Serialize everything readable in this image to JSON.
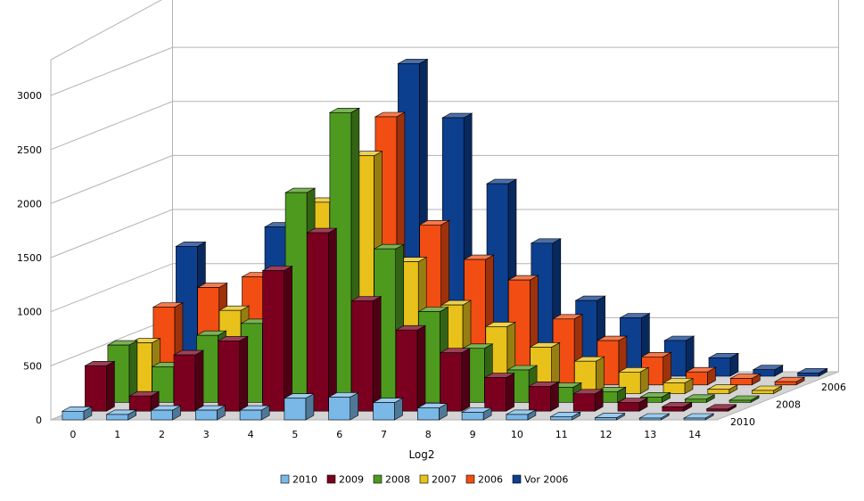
{
  "chart_data": {
    "type": "bar",
    "variant": "3d-deep",
    "xlabel": "Log2",
    "ylabel": "",
    "title": "",
    "categories": [
      "0",
      "1",
      "2",
      "3",
      "4",
      "5",
      "6",
      "7",
      "8",
      "9",
      "10",
      "11",
      "12",
      "13",
      "14"
    ],
    "yticks": [
      "0",
      "500",
      "1000",
      "1500",
      "2000",
      "2500",
      "3000"
    ],
    "ylim": [
      0,
      3000
    ],
    "depth_labels": [
      "2010",
      "2008",
      "2006"
    ],
    "legend_position": "bottom",
    "grid": true,
    "series": [
      {
        "name": "2010",
        "color": "#7ab8e8",
        "values": [
          80,
          50,
          90,
          90,
          90,
          200,
          210,
          160,
          110,
          70,
          50,
          30,
          20,
          10,
          10
        ]
      },
      {
        "name": "2009",
        "color": "#7b0020",
        "values": [
          420,
          140,
          520,
          650,
          1300,
          1650,
          1020,
          750,
          540,
          310,
          230,
          160,
          80,
          40,
          20
        ]
      },
      {
        "name": "2008",
        "color": "#4e9a1e",
        "values": [
          530,
          330,
          620,
          730,
          1940,
          2680,
          1420,
          840,
          500,
          300,
          140,
          100,
          50,
          30,
          20
        ]
      },
      {
        "name": "2007",
        "color": "#e8c21a",
        "values": [
          470,
          350,
          770,
          720,
          1770,
          2200,
          1220,
          820,
          620,
          430,
          300,
          200,
          100,
          40,
          30
        ]
      },
      {
        "name": "2006",
        "color": "#f24d12",
        "values": [
          720,
          900,
          1000,
          1370,
          1530,
          2480,
          1480,
          1160,
          970,
          610,
          410,
          260,
          120,
          60,
          30
        ]
      },
      {
        "name": "Vor 2006",
        "color": "#0d3f8f",
        "values": [
          1200,
          200,
          1380,
          1030,
          1180,
          2890,
          2390,
          1780,
          1230,
          700,
          540,
          330,
          170,
          60,
          30
        ]
      }
    ]
  }
}
